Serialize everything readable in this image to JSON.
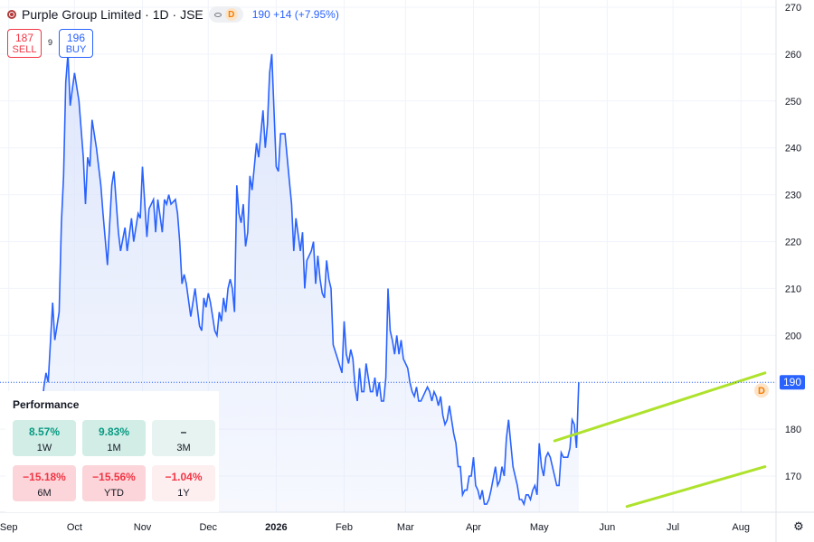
{
  "header": {
    "title": "Purple Group Limited · 1D · JSE",
    "badge": "D",
    "price_change": "190 +14 (+7.95%)"
  },
  "trade": {
    "sell_value": "187",
    "sell_label": "SELL",
    "spread": "9",
    "buy_value": "196",
    "buy_label": "BUY"
  },
  "last_price_label": "190",
  "dividend_marker": "D",
  "performance": {
    "title": "Performance",
    "cells": [
      {
        "value": "8.57%",
        "period": "1W",
        "tone": "green"
      },
      {
        "value": "9.83%",
        "period": "1M",
        "tone": "green"
      },
      {
        "value": "–",
        "period": "3M",
        "tone": "grey"
      },
      {
        "value": "−15.18%",
        "period": "6M",
        "tone": "red"
      },
      {
        "value": "−15.56%",
        "period": "YTD",
        "tone": "red"
      },
      {
        "value": "−1.04%",
        "period": "1Y",
        "tone": "lightred"
      }
    ]
  },
  "colors": {
    "line": "#2962ff",
    "area": "#dbe4fb",
    "channel": "#aee22c",
    "grid": "#f0f3fa"
  },
  "chart_data": {
    "type": "line",
    "title": "",
    "xlabel": "",
    "ylabel": "",
    "ylim": [
      163,
      272
    ],
    "y_ticks": [
      "170",
      "180",
      "190",
      "200",
      "210",
      "220",
      "230",
      "240",
      "250",
      "260",
      "270"
    ],
    "x_ticks": [
      {
        "label": "Sep",
        "t": 0
      },
      {
        "label": "Oct",
        "t": 30
      },
      {
        "label": "Nov",
        "t": 61
      },
      {
        "label": "Dec",
        "t": 91
      },
      {
        "label": "2026",
        "t": 122
      },
      {
        "label": "Feb",
        "t": 153
      },
      {
        "label": "Mar",
        "t": 181
      },
      {
        "label": "Apr",
        "t": 212
      },
      {
        "label": "May",
        "t": 242
      },
      {
        "label": "Jun",
        "t": 273
      },
      {
        "label": "Jul",
        "t": 303
      },
      {
        "label": "Aug",
        "t": 334
      }
    ],
    "x_range": [
      -4,
      350
    ],
    "series": [
      {
        "values": [
          [
            14,
            178
          ],
          [
            16,
            189
          ],
          [
            17,
            192
          ],
          [
            18,
            190
          ],
          [
            20,
            207
          ],
          [
            21,
            199
          ],
          [
            23,
            205
          ],
          [
            24,
            224
          ],
          [
            25,
            234
          ],
          [
            26,
            254
          ],
          [
            27,
            260
          ],
          [
            28,
            249
          ],
          [
            30,
            256
          ],
          [
            32,
            250
          ],
          [
            34,
            238
          ],
          [
            35,
            228
          ],
          [
            36,
            238
          ],
          [
            37,
            236
          ],
          [
            38,
            246
          ],
          [
            40,
            240
          ],
          [
            42,
            232
          ],
          [
            43,
            226
          ],
          [
            45,
            215
          ],
          [
            47,
            232
          ],
          [
            48,
            235
          ],
          [
            50,
            222
          ],
          [
            51,
            218
          ],
          [
            53,
            223
          ],
          [
            54,
            218
          ],
          [
            56,
            225
          ],
          [
            57,
            220
          ],
          [
            59,
            226
          ],
          [
            60,
            225
          ],
          [
            61,
            236
          ],
          [
            63,
            221
          ],
          [
            64,
            227
          ],
          [
            66,
            229
          ],
          [
            67,
            222
          ],
          [
            68,
            229
          ],
          [
            70,
            222
          ],
          [
            71,
            229
          ],
          [
            72,
            228
          ],
          [
            73,
            230
          ],
          [
            74,
            228
          ],
          [
            76,
            229
          ],
          [
            77,
            226
          ],
          [
            78,
            220
          ],
          [
            79,
            211
          ],
          [
            80,
            213
          ],
          [
            81,
            211
          ],
          [
            83,
            204
          ],
          [
            85,
            210
          ],
          [
            86,
            206
          ],
          [
            87,
            202
          ],
          [
            88,
            201
          ],
          [
            89,
            208
          ],
          [
            90,
            206
          ],
          [
            91,
            209
          ],
          [
            92,
            207
          ],
          [
            93,
            204
          ],
          [
            94,
            201
          ],
          [
            95,
            200
          ],
          [
            96,
            205
          ],
          [
            97,
            203
          ],
          [
            98,
            208
          ],
          [
            99,
            205
          ],
          [
            100,
            210
          ],
          [
            101,
            212
          ],
          [
            102,
            210
          ],
          [
            103,
            205
          ],
          [
            104,
            232
          ],
          [
            105,
            226
          ],
          [
            106,
            224
          ],
          [
            107,
            228
          ],
          [
            108,
            219
          ],
          [
            109,
            222
          ],
          [
            110,
            234
          ],
          [
            111,
            231
          ],
          [
            112,
            236
          ],
          [
            113,
            241
          ],
          [
            114,
            238
          ],
          [
            116,
            248
          ],
          [
            117,
            240
          ],
          [
            118,
            245
          ],
          [
            119,
            256
          ],
          [
            120,
            260
          ],
          [
            122,
            236
          ],
          [
            123,
            235
          ],
          [
            124,
            243
          ],
          [
            126,
            243
          ],
          [
            128,
            233
          ],
          [
            129,
            228
          ],
          [
            130,
            218
          ],
          [
            131,
            225
          ],
          [
            133,
            218
          ],
          [
            134,
            222
          ],
          [
            135,
            210
          ],
          [
            136,
            216
          ],
          [
            138,
            218
          ],
          [
            139,
            220
          ],
          [
            140,
            211
          ],
          [
            141,
            217
          ],
          [
            142,
            212
          ],
          [
            143,
            209
          ],
          [
            144,
            208
          ],
          [
            145,
            216
          ],
          [
            146,
            212
          ],
          [
            147,
            210
          ],
          [
            148,
            198
          ],
          [
            150,
            195
          ],
          [
            152,
            192
          ],
          [
            153,
            203
          ],
          [
            154,
            196
          ],
          [
            155,
            194
          ],
          [
            156,
            197
          ],
          [
            157,
            195
          ],
          [
            158,
            189
          ],
          [
            159,
            186
          ],
          [
            160,
            193
          ],
          [
            161,
            188
          ],
          [
            162,
            188
          ],
          [
            163,
            194
          ],
          [
            164,
            191
          ],
          [
            165,
            188
          ],
          [
            166,
            188
          ],
          [
            167,
            191
          ],
          [
            168,
            187
          ],
          [
            169,
            190
          ],
          [
            170,
            186
          ],
          [
            171,
            186
          ],
          [
            172,
            191
          ],
          [
            173,
            210
          ],
          [
            174,
            201
          ],
          [
            175,
            199
          ],
          [
            176,
            196
          ],
          [
            177,
            200
          ],
          [
            178,
            196
          ],
          [
            179,
            199
          ],
          [
            180,
            195
          ],
          [
            181,
            194
          ],
          [
            182,
            193
          ],
          [
            183,
            190
          ],
          [
            184,
            188
          ],
          [
            185,
            187
          ],
          [
            186,
            189
          ],
          [
            187,
            186
          ],
          [
            188,
            186
          ],
          [
            189,
            187
          ],
          [
            190,
            188
          ],
          [
            191,
            189
          ],
          [
            192,
            188
          ],
          [
            193,
            186
          ],
          [
            194,
            188
          ],
          [
            195,
            187
          ],
          [
            196,
            185
          ],
          [
            197,
            187
          ],
          [
            198,
            183
          ],
          [
            199,
            181
          ],
          [
            200,
            182
          ],
          [
            201,
            185
          ],
          [
            202,
            182
          ],
          [
            203,
            179
          ],
          [
            204,
            177
          ],
          [
            205,
            172
          ],
          [
            206,
            172
          ],
          [
            207,
            166
          ],
          [
            208,
            167
          ],
          [
            209,
            167
          ],
          [
            210,
            170
          ],
          [
            211,
            170
          ],
          [
            212,
            174
          ],
          [
            213,
            168
          ],
          [
            214,
            167
          ],
          [
            215,
            165
          ],
          [
            216,
            167
          ],
          [
            217,
            164
          ],
          [
            218,
            164
          ],
          [
            219,
            165
          ],
          [
            220,
            167
          ],
          [
            222,
            172
          ],
          [
            223,
            168
          ],
          [
            224,
            169
          ],
          [
            225,
            172
          ],
          [
            226,
            170
          ],
          [
            227,
            178
          ],
          [
            228,
            182
          ],
          [
            229,
            177
          ],
          [
            230,
            172
          ],
          [
            231,
            170
          ],
          [
            232,
            168
          ],
          [
            233,
            165
          ],
          [
            234,
            165
          ],
          [
            235,
            164
          ],
          [
            236,
            166
          ],
          [
            237,
            166
          ],
          [
            238,
            165
          ],
          [
            239,
            167
          ],
          [
            240,
            168
          ],
          [
            241,
            166
          ],
          [
            242,
            177
          ],
          [
            243,
            172
          ],
          [
            244,
            170
          ],
          [
            245,
            174
          ],
          [
            246,
            175
          ],
          [
            247,
            174
          ],
          [
            248,
            172
          ],
          [
            249,
            170
          ],
          [
            250,
            168
          ],
          [
            251,
            168
          ],
          [
            252,
            175
          ],
          [
            253,
            174
          ],
          [
            254,
            174
          ],
          [
            255,
            174
          ],
          [
            256,
            176
          ],
          [
            257,
            182
          ],
          [
            258,
            181
          ],
          [
            259,
            176
          ],
          [
            260,
            190
          ]
        ]
      }
    ],
    "channel_lines": [
      {
        "from": [
          249,
          177.5
        ],
        "to": [
          345,
          192
        ]
      },
      {
        "from": [
          282,
          163.5
        ],
        "to": [
          345,
          172
        ]
      }
    ],
    "last_value": 190,
    "grid": true,
    "y_axis_position": "right"
  }
}
